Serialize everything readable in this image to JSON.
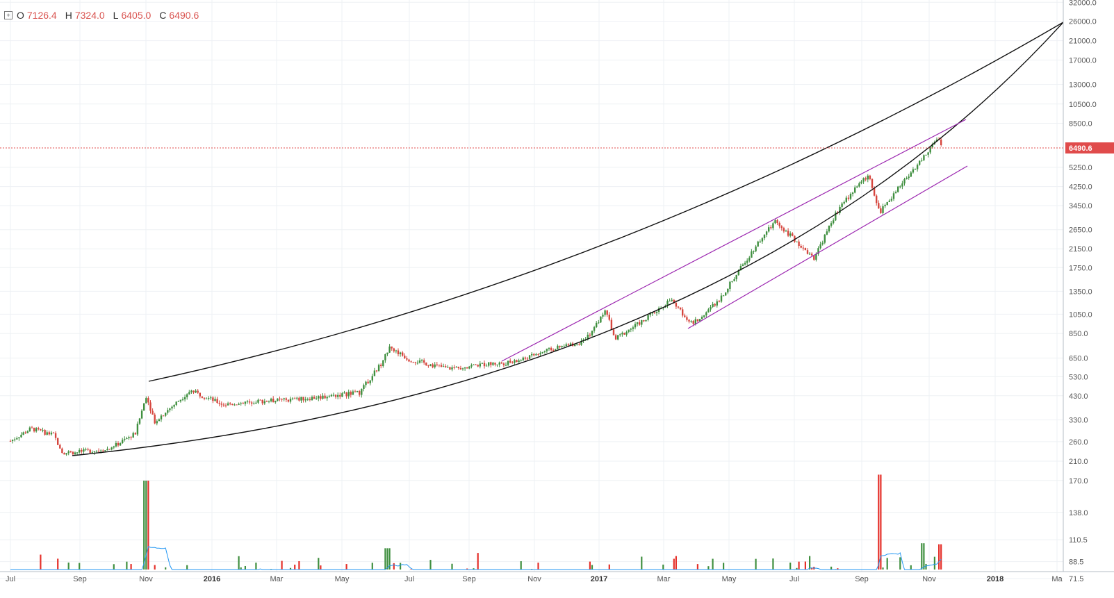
{
  "legend": {
    "open_key": "O",
    "open": "7126.4",
    "high_key": "H",
    "high": "7324.0",
    "low_key": "L",
    "low": "6405.0",
    "close_key": "C",
    "close": "6490.6"
  },
  "chart_data": {
    "type": "candlestick",
    "price_scale": "log",
    "last_price_label": "6490.6",
    "y_ticks": [
      "32000.0",
      "26000.0",
      "21000.0",
      "17000.0",
      "13000.0",
      "10500.0",
      "8500.0",
      "6490.6",
      "5250.0",
      "4250.0",
      "3450.0",
      "2650.0",
      "2150.0",
      "1750.0",
      "1350.0",
      "1050.0",
      "850.0",
      "650.0",
      "530.0",
      "430.0",
      "330.0",
      "260.0",
      "210.0",
      "170.0",
      "138.0",
      "110.5",
      "88.5",
      "71.5"
    ],
    "x_ticks": [
      {
        "label": "Jul",
        "bold": false
      },
      {
        "label": "Sep",
        "bold": false
      },
      {
        "label": "Nov",
        "bold": false
      },
      {
        "label": "2016",
        "bold": true
      },
      {
        "label": "Mar",
        "bold": false
      },
      {
        "label": "May",
        "bold": false
      },
      {
        "label": "Jul",
        "bold": false
      },
      {
        "label": "Sep",
        "bold": false
      },
      {
        "label": "Nov",
        "bold": false
      },
      {
        "label": "2017",
        "bold": true
      },
      {
        "label": "Mar",
        "bold": false
      },
      {
        "label": "May",
        "bold": false
      },
      {
        "label": "Jul",
        "bold": false
      },
      {
        "label": "Sep",
        "bold": false
      },
      {
        "label": "Nov",
        "bold": false
      },
      {
        "label": "2018",
        "bold": true
      },
      {
        "label": "Ma",
        "bold": false
      }
    ],
    "price_path": [
      [
        "2015-07-01",
        262
      ],
      [
        "2015-07-20",
        300
      ],
      [
        "2015-08-10",
        280
      ],
      [
        "2015-08-19",
        230
      ],
      [
        "2015-09-01",
        232
      ],
      [
        "2015-10-01",
        240
      ],
      [
        "2015-10-25",
        285
      ],
      [
        "2015-11-04",
        430
      ],
      [
        "2015-11-12",
        325
      ],
      [
        "2015-12-15",
        455
      ],
      [
        "2016-01-15",
        390
      ],
      [
        "2016-02-15",
        405
      ],
      [
        "2016-03-15",
        410
      ],
      [
        "2016-04-15",
        425
      ],
      [
        "2016-05-20",
        445
      ],
      [
        "2016-06-10",
        620
      ],
      [
        "2016-06-17",
        735
      ],
      [
        "2016-07-05",
        640
      ],
      [
        "2016-08-10",
        580
      ],
      [
        "2016-09-10",
        605
      ],
      [
        "2016-10-10",
        620
      ],
      [
        "2016-11-10",
        705
      ],
      [
        "2016-12-15",
        780
      ],
      [
        "2017-01-04",
        1100
      ],
      [
        "2017-01-12",
        800
      ],
      [
        "2017-02-10",
        1000
      ],
      [
        "2017-03-05",
        1230
      ],
      [
        "2017-03-25",
        940
      ],
      [
        "2017-04-20",
        1250
      ],
      [
        "2017-05-25",
        2300
      ],
      [
        "2017-06-10",
        2900
      ],
      [
        "2017-07-16",
        1950
      ],
      [
        "2017-08-06",
        3200
      ],
      [
        "2017-08-25",
        4300
      ],
      [
        "2017-09-05",
        4800
      ],
      [
        "2017-09-15",
        3200
      ],
      [
        "2017-10-10",
        4700
      ],
      [
        "2017-10-25",
        5800
      ],
      [
        "2017-11-08",
        7300
      ],
      [
        "2017-11-12",
        6490
      ]
    ],
    "volume_peaks": [
      [
        "2015-11-04",
        170
      ],
      [
        "2016-06-15",
        102
      ],
      [
        "2017-09-15",
        176
      ],
      [
        "2017-10-25",
        107
      ],
      [
        "2017-11-10",
        106
      ]
    ]
  }
}
